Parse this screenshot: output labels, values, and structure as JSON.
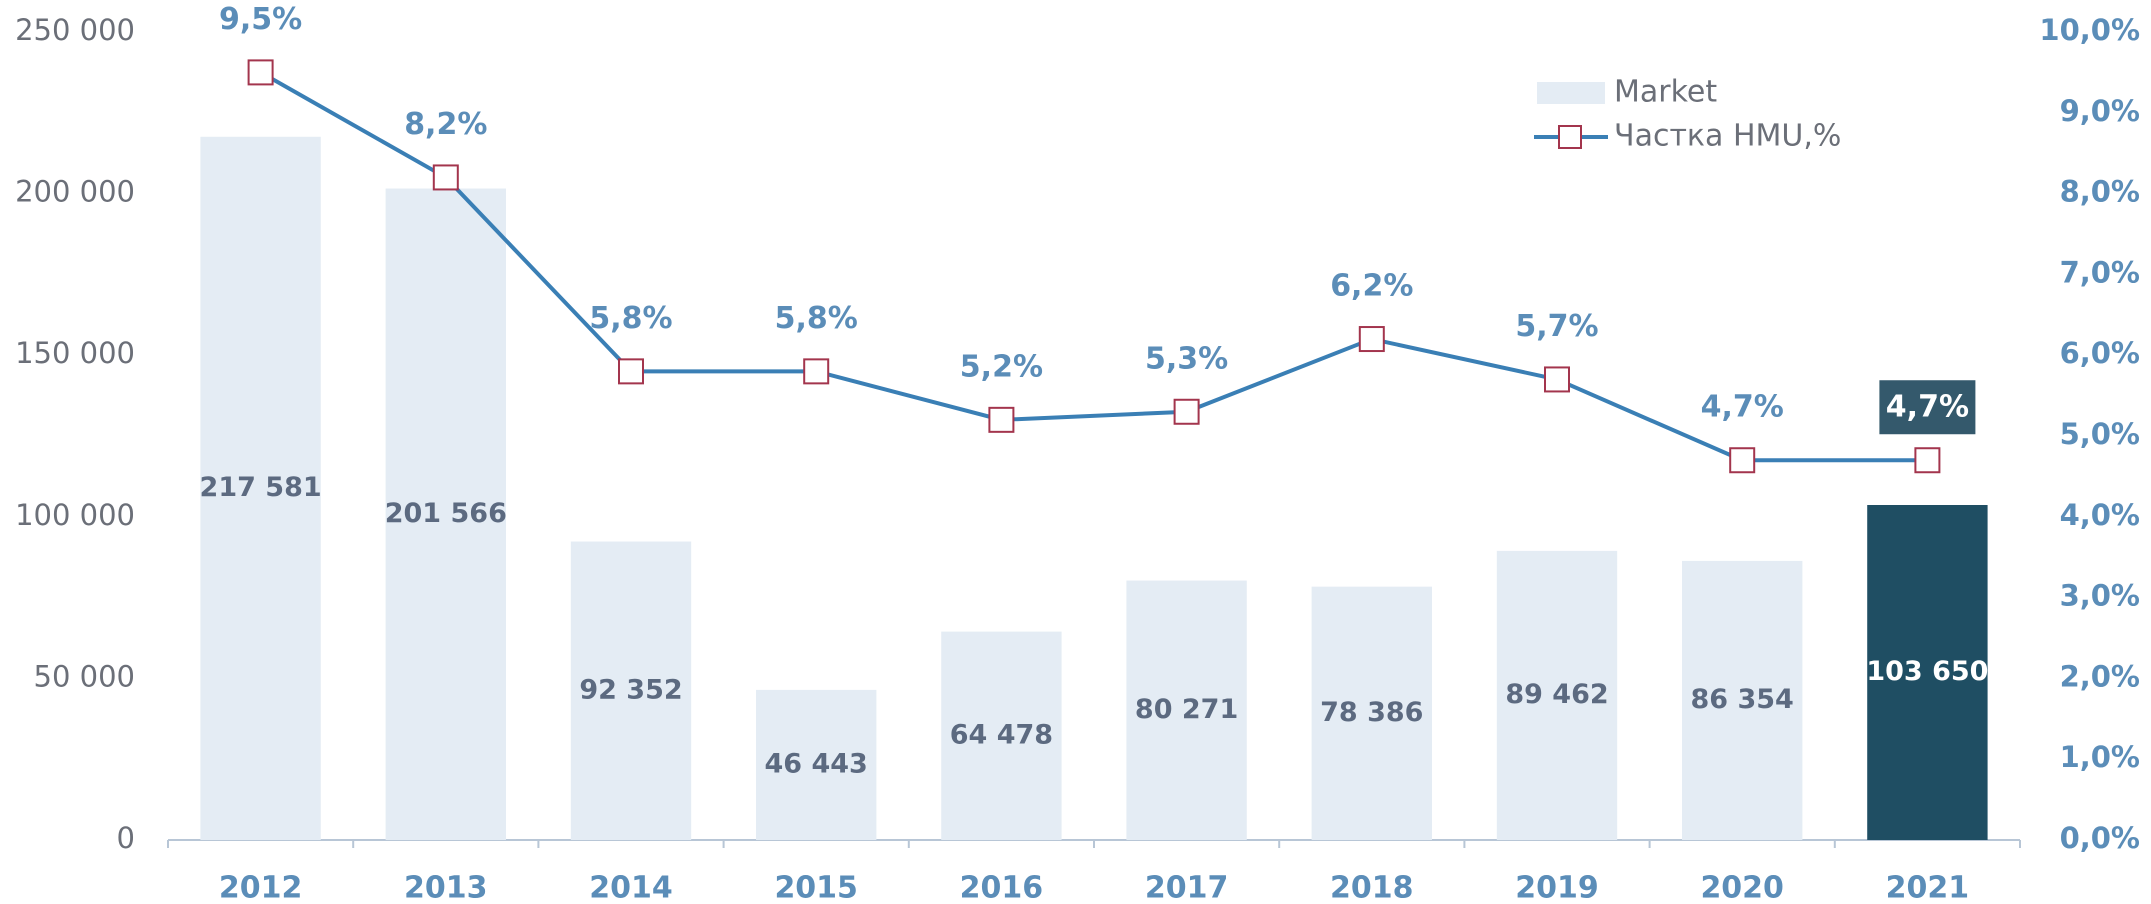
{
  "chart_data": {
    "type": "combo",
    "categories": [
      "2012",
      "2013",
      "2014",
      "2015",
      "2016",
      "2017",
      "2018",
      "2019",
      "2020",
      "2021"
    ],
    "series": [
      {
        "name": "Market",
        "type": "bar",
        "colors": [
          "#e4ecf4",
          "#e4ecf4",
          "#e4ecf4",
          "#e4ecf4",
          "#e4ecf4",
          "#e4ecf4",
          "#e4ecf4",
          "#e4ecf4",
          "#e4ecf4",
          "#1f4e63"
        ],
        "values": [
          217581,
          201566,
          92352,
          46443,
          64478,
          80271,
          78386,
          89462,
          86354,
          103650
        ],
        "value_labels": [
          "217 581",
          "201 566",
          "92 352",
          "46 443",
          "64 478",
          "80 271",
          "78 386",
          "89 462",
          "86 354",
          "103 650"
        ]
      },
      {
        "name": "Частка HMU,%",
        "type": "line",
        "axis": "y2",
        "color": "#3a7fb5",
        "marker_color": "#a3354d",
        "values": [
          9.5,
          8.2,
          5.8,
          5.8,
          5.2,
          5.3,
          6.2,
          5.7,
          4.7,
          4.7
        ],
        "value_labels": [
          "9,5%",
          "8,2%",
          "5,8%",
          "5,8%",
          "5,2%",
          "5,3%",
          "6,2%",
          "5,7%",
          "4,7%",
          "4,7%"
        ]
      }
    ],
    "ylim": [
      0,
      250000
    ],
    "yticks": [
      0,
      {
        "value": 50000,
        "label": "50 000"
      },
      {
        "value": 100000,
        "label": "100 000"
      },
      {
        "value": 150000,
        "label": "150 000"
      },
      {
        "value": 200000,
        "label": "200 000"
      },
      {
        "value": 250000,
        "label": "250 000"
      }
    ],
    "y2lim": [
      0,
      10
    ],
    "y2ticks": [
      {
        "value": 0,
        "label": "0,0%"
      },
      {
        "value": 1,
        "label": "1,0%"
      },
      {
        "value": 2,
        "label": "2,0%"
      },
      {
        "value": 3,
        "label": "3,0%"
      },
      {
        "value": 4,
        "label": "4,0%"
      },
      {
        "value": 5,
        "label": "5,0%"
      },
      {
        "value": 6,
        "label": "6,0%"
      },
      {
        "value": 7,
        "label": "7,0%"
      },
      {
        "value": 8,
        "label": "8,0%"
      },
      {
        "value": 9,
        "label": "9,0%"
      },
      {
        "value": 10,
        "label": "10,0%"
      }
    ],
    "legend": "top-right"
  }
}
